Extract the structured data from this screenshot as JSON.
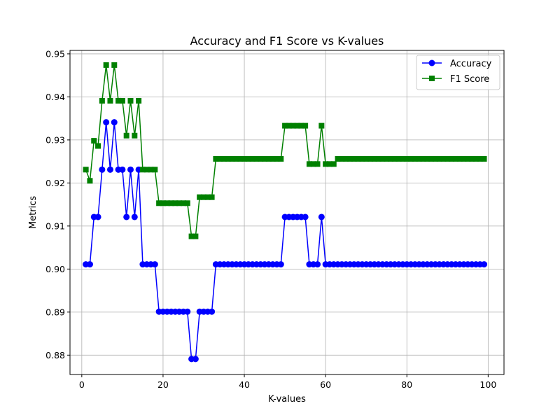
{
  "chart_data": {
    "type": "line",
    "title": "Accuracy and F1 Score vs K-values",
    "xlabel": "K-values",
    "ylabel": "Metrics",
    "xlim": [
      -2.9,
      103.9
    ],
    "ylim": [
      0.8755,
      0.9508
    ],
    "x_ticks": [
      0,
      20,
      40,
      60,
      80,
      100
    ],
    "x_tick_labels": [
      "0",
      "20",
      "40",
      "60",
      "80",
      "100"
    ],
    "y_ticks": [
      0.88,
      0.89,
      0.9,
      0.91,
      0.92,
      0.93,
      0.94,
      0.95
    ],
    "y_tick_labels": [
      "0.88",
      "0.89",
      "0.90",
      "0.91",
      "0.92",
      "0.93",
      "0.94",
      "0.95"
    ],
    "grid": true,
    "legend_position": "top-right",
    "x": [
      1,
      2,
      3,
      4,
      5,
      6,
      7,
      8,
      9,
      10,
      11,
      12,
      13,
      14,
      15,
      16,
      17,
      18,
      19,
      20,
      21,
      22,
      23,
      24,
      25,
      26,
      27,
      28,
      29,
      30,
      31,
      32,
      33,
      34,
      35,
      36,
      37,
      38,
      39,
      40,
      41,
      42,
      43,
      44,
      45,
      46,
      47,
      48,
      49,
      50,
      51,
      52,
      53,
      54,
      55,
      56,
      57,
      58,
      59,
      60,
      61,
      62,
      63,
      64,
      65,
      66,
      67,
      68,
      69,
      70,
      71,
      72,
      73,
      74,
      75,
      76,
      77,
      78,
      79,
      80,
      81,
      82,
      83,
      84,
      85,
      86,
      87,
      88,
      89,
      90,
      91,
      92,
      93,
      94,
      95,
      96,
      97,
      98,
      99
    ],
    "series": [
      {
        "name": "Accuracy",
        "color": "#0000ff",
        "marker": "circle",
        "values": [
          0.9011,
          0.9011,
          0.9121,
          0.9121,
          0.9231,
          0.9341,
          0.9231,
          0.9341,
          0.9231,
          0.9231,
          0.9121,
          0.9231,
          0.9121,
          0.9231,
          0.9011,
          0.9011,
          0.9011,
          0.9011,
          0.8901,
          0.8901,
          0.8901,
          0.8901,
          0.8901,
          0.8901,
          0.8901,
          0.8901,
          0.8791,
          0.8791,
          0.8901,
          0.8901,
          0.8901,
          0.8901,
          0.9011,
          0.9011,
          0.9011,
          0.9011,
          0.9011,
          0.9011,
          0.9011,
          0.9011,
          0.9011,
          0.9011,
          0.9011,
          0.9011,
          0.9011,
          0.9011,
          0.9011,
          0.9011,
          0.9011,
          0.9121,
          0.9121,
          0.9121,
          0.9121,
          0.9121,
          0.9121,
          0.9011,
          0.9011,
          0.9011,
          0.9121,
          0.9011,
          0.9011,
          0.9011,
          0.9011,
          0.9011,
          0.9011,
          0.9011,
          0.9011,
          0.9011,
          0.9011,
          0.9011,
          0.9011,
          0.9011,
          0.9011,
          0.9011,
          0.9011,
          0.9011,
          0.9011,
          0.9011,
          0.9011,
          0.9011,
          0.9011,
          0.9011,
          0.9011,
          0.9011,
          0.9011,
          0.9011,
          0.9011,
          0.9011,
          0.9011,
          0.9011,
          0.9011,
          0.9011,
          0.9011,
          0.9011,
          0.9011,
          0.9011,
          0.9011,
          0.9011,
          0.9011
        ]
      },
      {
        "name": "F1 Score",
        "color": "#008000",
        "marker": "square",
        "values": [
          0.9231,
          0.9205,
          0.9298,
          0.9286,
          0.9391,
          0.9474,
          0.9391,
          0.9474,
          0.9391,
          0.9391,
          0.931,
          0.9391,
          0.931,
          0.9391,
          0.9231,
          0.9231,
          0.9231,
          0.9231,
          0.9153,
          0.9153,
          0.9153,
          0.9153,
          0.9153,
          0.9153,
          0.9153,
          0.9153,
          0.9076,
          0.9076,
          0.9167,
          0.9167,
          0.9167,
          0.9167,
          0.9256,
          0.9256,
          0.9256,
          0.9256,
          0.9256,
          0.9256,
          0.9256,
          0.9256,
          0.9256,
          0.9256,
          0.9256,
          0.9256,
          0.9256,
          0.9256,
          0.9256,
          0.9256,
          0.9256,
          0.9333,
          0.9333,
          0.9333,
          0.9333,
          0.9333,
          0.9333,
          0.9244,
          0.9244,
          0.9244,
          0.9333,
          0.9244,
          0.9244,
          0.9244,
          0.9256,
          0.9256,
          0.9256,
          0.9256,
          0.9256,
          0.9256,
          0.9256,
          0.9256,
          0.9256,
          0.9256,
          0.9256,
          0.9256,
          0.9256,
          0.9256,
          0.9256,
          0.9256,
          0.9256,
          0.9256,
          0.9256,
          0.9256,
          0.9256,
          0.9256,
          0.9256,
          0.9256,
          0.9256,
          0.9256,
          0.9256,
          0.9256,
          0.9256,
          0.9256,
          0.9256,
          0.9256,
          0.9256,
          0.9256,
          0.9256,
          0.9256,
          0.9256
        ]
      }
    ]
  }
}
